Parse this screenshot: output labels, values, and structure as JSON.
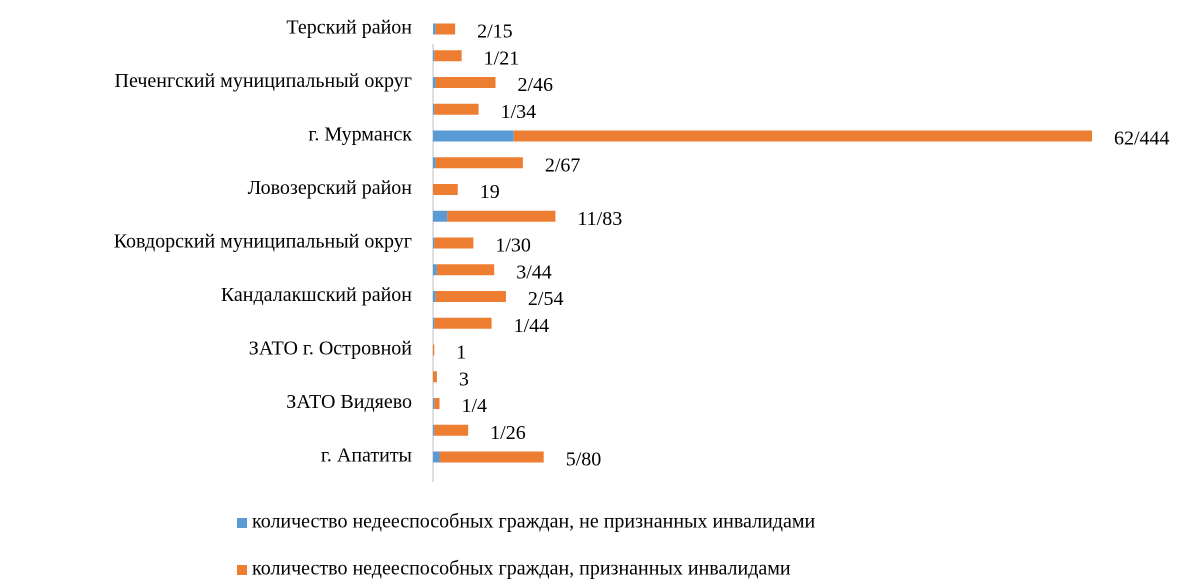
{
  "chart_data": {
    "type": "stacked_barh",
    "categories": [
      "г. Апатиты",
      null,
      "ЗАТО Видяево",
      null,
      "ЗАТО г. Островной",
      null,
      "Кандалакшский район",
      null,
      "Ковдорский муниципальный округ",
      null,
      "Ловозерский район",
      null,
      "г. Мурманск",
      null,
      "Печенгский муниципальный округ",
      null,
      "Терский район"
    ],
    "series": [
      {
        "name": "количество недееспособных граждан, не признанных инвалидами",
        "color": "#5b9bd5",
        "values": [
          5,
          1,
          1,
          0,
          0,
          1,
          2,
          3,
          1,
          11,
          0,
          2,
          62,
          1,
          2,
          1,
          2
        ]
      },
      {
        "name": "количество недееспособных граждан, признанных инвалидами",
        "color": "#ed7d31",
        "values": [
          80,
          26,
          4,
          3,
          1,
          44,
          54,
          44,
          30,
          83,
          19,
          67,
          444,
          34,
          46,
          21,
          15
        ]
      }
    ],
    "value_labels": [
      "5/80",
      "1/26",
      "1/4",
      "3",
      "1",
      "1/44",
      "2/54",
      "3/44",
      "1/30",
      "11/83",
      "19",
      "2/67",
      "62/444",
      "1/34",
      "2/46",
      "1/21",
      "2/15"
    ]
  }
}
